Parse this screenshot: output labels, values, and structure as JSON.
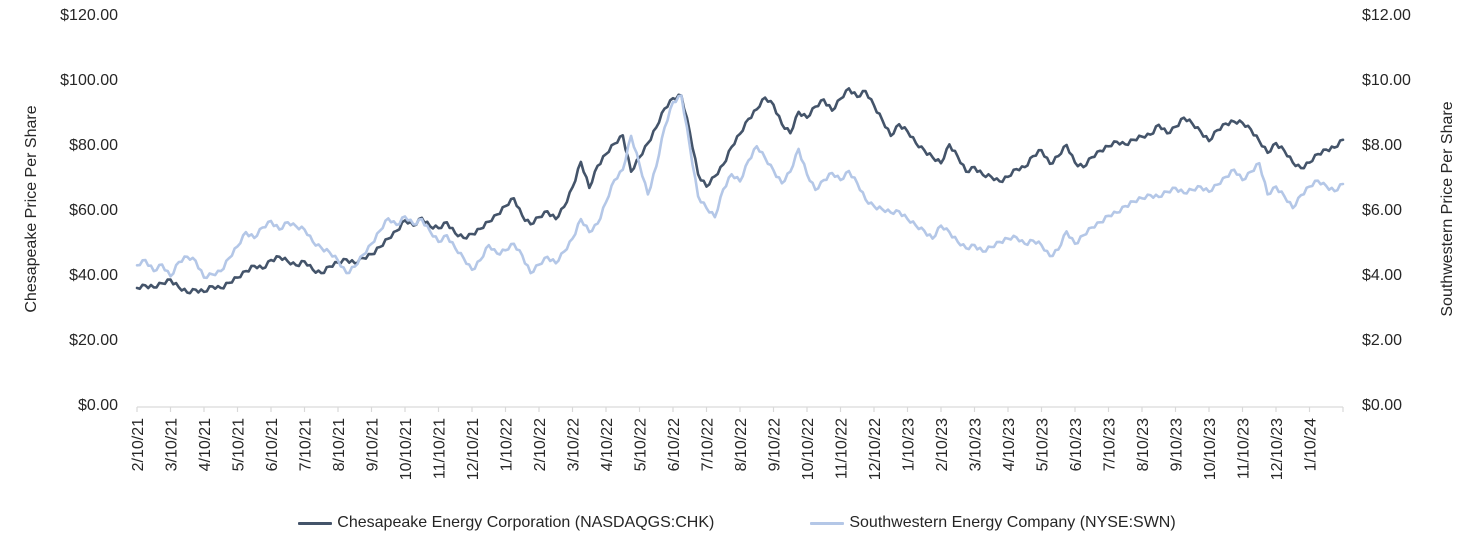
{
  "colors": {
    "chk_line": "#44546A",
    "swn_line": "#B4C7E7",
    "axis_line": "#D9D9D9",
    "text": "#262626",
    "background": "#FFFFFF"
  },
  "legend": {
    "items": [
      {
        "label": "Chesapeake Energy Corporation (NASDAQGS:CHK)",
        "color": "#44546A"
      },
      {
        "label": "Southwestern Energy Company (NYSE:SWN)",
        "color": "#B4C7E7"
      }
    ]
  },
  "chart_data": {
    "type": "line",
    "title": "",
    "grid": "off",
    "legend_position": "bottom",
    "left_axis": {
      "title": "Chesapeake Price Per Share",
      "tick_labels": [
        "$120.00",
        "$100.00",
        "$80.00",
        "$60.00",
        "$40.00",
        "$20.00",
        "$0.00"
      ],
      "tick_values": [
        120,
        100,
        80,
        60,
        40,
        20,
        0
      ],
      "range": [
        0,
        120
      ]
    },
    "right_axis": {
      "title": "Southwestern Price Per Share",
      "tick_labels": [
        "$12.00",
        "$10.00",
        "$8.00",
        "$6.00",
        "$4.00",
        "$2.00",
        "$0.00"
      ],
      "tick_values": [
        12,
        10,
        8,
        6,
        4,
        2,
        0
      ],
      "range": [
        0,
        12
      ]
    },
    "x_axis": {
      "tick_labels": [
        "2/10/21",
        "3/10/21",
        "4/10/21",
        "5/10/21",
        "6/10/21",
        "7/10/21",
        "8/10/21",
        "9/10/21",
        "10/10/21",
        "11/10/21",
        "12/10/21",
        "1/10/22",
        "2/10/22",
        "3/10/22",
        "4/10/22",
        "5/10/22",
        "6/10/22",
        "7/10/22",
        "8/10/22",
        "9/10/22",
        "10/10/22",
        "11/10/22",
        "12/10/22",
        "1/10/23",
        "2/10/23",
        "3/10/23",
        "4/10/23",
        "5/10/23",
        "6/10/23",
        "7/10/23",
        "8/10/23",
        "9/10/23",
        "10/10/23",
        "11/10/23",
        "12/10/23",
        "1/10/24"
      ]
    },
    "series": [
      {
        "name": "Chesapeake Energy Corporation (NASDAQGS:CHK)",
        "axis": "left",
        "color": "#44546A",
        "x_unit": "months_since_2/10/21",
        "x_start": 0,
        "x_step": 0.25,
        "values": [
          36.0,
          36.8,
          36.2,
          37.4,
          38.6,
          36.2,
          34.6,
          35.5,
          34.8,
          36.5,
          36.0,
          37.6,
          39.2,
          41.2,
          42.8,
          42.0,
          44.6,
          45.6,
          44.2,
          43.0,
          44.2,
          41.6,
          40.6,
          42.6,
          43.8,
          44.8,
          43.6,
          45.2,
          46.4,
          48.6,
          51.2,
          53.6,
          56.8,
          55.2,
          57.6,
          55.0,
          54.4,
          56.2,
          52.8,
          51.4,
          52.6,
          54.2,
          56.4,
          58.6,
          61.2,
          63.6,
          58.2,
          55.6,
          57.8,
          59.6,
          57.2,
          61.0,
          67.0,
          74.8,
          66.8,
          73.6,
          77.2,
          80.4,
          83.0,
          71.8,
          76.2,
          80.6,
          85.4,
          91.2,
          94.4,
          95.2,
          84.0,
          71.0,
          67.2,
          70.4,
          74.0,
          79.4,
          83.4,
          88.0,
          91.0,
          94.6,
          92.4,
          86.4,
          83.6,
          90.2,
          88.4,
          91.8,
          94.0,
          90.6,
          94.2,
          97.4,
          94.8,
          96.6,
          92.2,
          87.6,
          82.8,
          86.4,
          84.2,
          80.6,
          78.4,
          76.2,
          74.4,
          80.2,
          76.4,
          71.8,
          73.2,
          70.8,
          70.2,
          68.8,
          70.2,
          72.6,
          73.2,
          76.6,
          78.4,
          74.2,
          76.6,
          80.0,
          74.6,
          73.2,
          76.2,
          78.2,
          79.6,
          81.0,
          80.2,
          81.6,
          82.6,
          83.2,
          86.2,
          83.6,
          85.6,
          88.4,
          86.6,
          84.2,
          81.2,
          84.6,
          86.6,
          87.2,
          86.8,
          84.8,
          81.2,
          77.6,
          80.6,
          78.2,
          74.6,
          72.9,
          74.6,
          77.2,
          78.6,
          79.2,
          81.6
        ]
      },
      {
        "name": "Southwestern Energy Company (NYSE:SWN)",
        "axis": "right",
        "color": "#B4C7E7",
        "x_unit": "months_since_2/10/21",
        "x_start": 0,
        "x_step": 0.25,
        "values": [
          4.3,
          4.46,
          4.12,
          4.32,
          3.96,
          4.4,
          4.56,
          4.44,
          3.92,
          4.02,
          4.12,
          4.52,
          4.88,
          5.32,
          5.14,
          5.46,
          5.66,
          5.4,
          5.62,
          5.5,
          5.4,
          5.02,
          4.84,
          4.7,
          4.44,
          4.06,
          4.26,
          4.62,
          4.96,
          5.36,
          5.74,
          5.54,
          5.8,
          5.56,
          5.72,
          5.34,
          5.02,
          5.22,
          4.82,
          4.52,
          4.16,
          4.46,
          4.92,
          4.66,
          4.76,
          4.96,
          4.6,
          4.06,
          4.32,
          4.56,
          4.36,
          4.72,
          5.12,
          5.72,
          5.32,
          5.58,
          6.24,
          6.92,
          7.24,
          8.28,
          7.4,
          6.48,
          7.34,
          8.54,
          9.32,
          9.52,
          7.96,
          6.42,
          6.06,
          5.78,
          6.64,
          7.1,
          6.88,
          7.52,
          7.96,
          7.6,
          7.22,
          6.82,
          7.18,
          7.88,
          7.1,
          6.62,
          6.92,
          7.14,
          6.92,
          7.2,
          6.82,
          6.32,
          6.12,
          6.02,
          5.92,
          5.96,
          5.72,
          5.52,
          5.36,
          5.12,
          5.52,
          5.32,
          5.02,
          4.82,
          4.92,
          4.72,
          4.86,
          5.02,
          5.12,
          5.16,
          4.96,
          5.06,
          4.92,
          4.58,
          4.78,
          5.34,
          4.96,
          5.22,
          5.46,
          5.62,
          5.82,
          5.92,
          6.12,
          6.26,
          6.36,
          6.46,
          6.4,
          6.56,
          6.68,
          6.52,
          6.62,
          6.72,
          6.56,
          6.78,
          7.02,
          7.24,
          6.92,
          7.18,
          7.44,
          6.48,
          6.72,
          6.42,
          6.06,
          6.46,
          6.72,
          6.9,
          6.74,
          6.58,
          6.8
        ]
      }
    ]
  }
}
